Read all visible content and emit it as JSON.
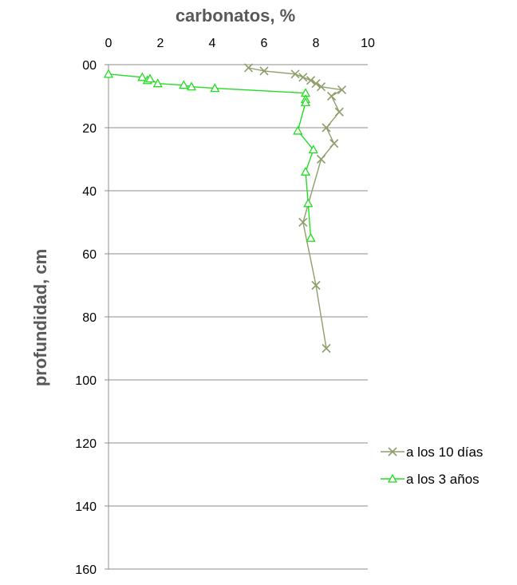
{
  "chart_data": {
    "type": "line",
    "xlabel": "carbonatos,  %",
    "ylabel": "profundidad,  cm",
    "xlim": [
      0,
      10
    ],
    "ylim": [
      0,
      160
    ],
    "y_inverted": true,
    "x_axis_position": "top",
    "x_ticks": [
      "0",
      "2",
      "4",
      "6",
      "8",
      "10"
    ],
    "y_ticks": [
      "00",
      "20",
      "40",
      "60",
      "80",
      "100",
      "120",
      "140",
      "160"
    ],
    "grid": "horizontal",
    "legend_position": "right",
    "series": [
      {
        "name": "a los 10 días",
        "color": "#8f9e6a",
        "marker": "x",
        "points": [
          {
            "x": 5.4,
            "y": 1
          },
          {
            "x": 6.0,
            "y": 2
          },
          {
            "x": 7.2,
            "y": 3
          },
          {
            "x": 7.5,
            "y": 4
          },
          {
            "x": 7.8,
            "y": 5
          },
          {
            "x": 8.0,
            "y": 6
          },
          {
            "x": 8.2,
            "y": 7
          },
          {
            "x": 9.0,
            "y": 8
          },
          {
            "x": 8.6,
            "y": 10
          },
          {
            "x": 8.9,
            "y": 15
          },
          {
            "x": 8.4,
            "y": 20
          },
          {
            "x": 8.7,
            "y": 25
          },
          {
            "x": 8.2,
            "y": 30
          },
          {
            "x": 7.5,
            "y": 50
          },
          {
            "x": 8.0,
            "y": 70
          },
          {
            "x": 8.4,
            "y": 90
          }
        ]
      },
      {
        "name": "a los 3 años",
        "color": "#22dd22",
        "marker": "triangle",
        "points": [
          {
            "x": 0.0,
            "y": 3
          },
          {
            "x": 1.3,
            "y": 4
          },
          {
            "x": 1.5,
            "y": 5
          },
          {
            "x": 1.6,
            "y": 4.5
          },
          {
            "x": 1.9,
            "y": 6
          },
          {
            "x": 2.9,
            "y": 6.5
          },
          {
            "x": 3.2,
            "y": 7
          },
          {
            "x": 4.1,
            "y": 7.5
          },
          {
            "x": 7.6,
            "y": 9
          },
          {
            "x": 7.6,
            "y": 11
          },
          {
            "x": 7.6,
            "y": 12
          },
          {
            "x": 7.3,
            "y": 21
          },
          {
            "x": 7.9,
            "y": 27
          },
          {
            "x": 7.6,
            "y": 34
          },
          {
            "x": 7.7,
            "y": 44
          },
          {
            "x": 7.8,
            "y": 55
          }
        ]
      }
    ]
  }
}
